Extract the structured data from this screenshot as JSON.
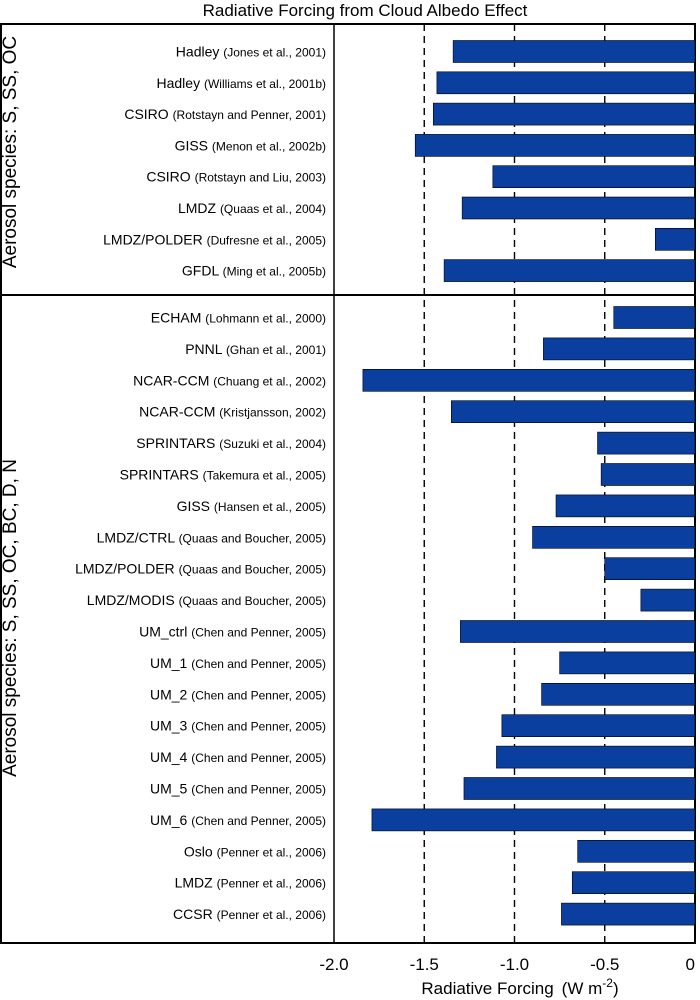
{
  "chart_data": {
    "type": "bar",
    "orientation": "horizontal",
    "title": "Radiative Forcing from Cloud Albedo Effect",
    "xlabel": "Radiative Forcing",
    "xlabel_units": "(W m",
    "xlabel_units_exp": "-2",
    "xlabel_units_close": ")",
    "xlim": [
      -2.0,
      0
    ],
    "xticks": [
      {
        "value": -2.0,
        "label": "-2.0"
      },
      {
        "value": -1.5,
        "label": "-1.5"
      },
      {
        "value": -1.0,
        "label": "-1.0"
      },
      {
        "value": -0.5,
        "label": "-0.5"
      },
      {
        "value": 0,
        "label": "0"
      }
    ],
    "reference_lines": [
      -1.5,
      -1.0,
      -0.5
    ],
    "bar_color": "#0a3fa0",
    "groups": [
      {
        "label": "Aerosol species: S, SS, OC",
        "items": [
          {
            "model": "Hadley",
            "ref": "(Jones et al., 2001)",
            "value": -1.34
          },
          {
            "model": "Hadley",
            "ref": "(Williams et al., 2001b)",
            "value": -1.43
          },
          {
            "model": "CSIRO",
            "ref": "(Rotstayn and Penner, 2001)",
            "value": -1.45
          },
          {
            "model": "GISS",
            "ref": "(Menon et al., 2002b)",
            "value": -1.55
          },
          {
            "model": "CSIRO",
            "ref": "(Rotstayn and Liu, 2003)",
            "value": -1.12
          },
          {
            "model": "LMDZ",
            "ref": "(Quaas et al., 2004)",
            "value": -1.29
          },
          {
            "model": "LMDZ/POLDER",
            "ref": "(Dufresne et al., 2005)",
            "value": -0.22
          },
          {
            "model": "GFDL",
            "ref": "(Ming et al., 2005b)",
            "value": -1.39
          }
        ]
      },
      {
        "label": "Aerosol species: S, SS, OC, BC, D, N",
        "items": [
          {
            "model": "ECHAM",
            "ref": "(Lohmann et al., 2000)",
            "value": -0.45
          },
          {
            "model": "PNNL",
            "ref": "(Ghan et al., 2001)",
            "value": -0.84
          },
          {
            "model": "NCAR-CCM",
            "ref": "(Chuang et al., 2002)",
            "value": -1.84
          },
          {
            "model": "NCAR-CCM",
            "ref": "(Kristjansson, 2002)",
            "value": -1.35
          },
          {
            "model": "SPRINTARS",
            "ref": "(Suzuki et al., 2004)",
            "value": -0.54
          },
          {
            "model": "SPRINTARS",
            "ref": "(Takemura et al., 2005)",
            "value": -0.52
          },
          {
            "model": "GISS",
            "ref": "(Hansen et al., 2005)",
            "value": -0.77
          },
          {
            "model": "LMDZ/CTRL",
            "ref": "(Quaas and Boucher, 2005)",
            "value": -0.9
          },
          {
            "model": "LMDZ/POLDER",
            "ref": "(Quaas and Boucher, 2005)",
            "value": -0.5
          },
          {
            "model": "LMDZ/MODIS",
            "ref": "(Quaas and Boucher, 2005)",
            "value": -0.3
          },
          {
            "model": "UM_ctrl",
            "ref": "(Chen and Penner, 2005)",
            "value": -1.3
          },
          {
            "model": "UM_1",
            "ref": "(Chen and Penner, 2005)",
            "value": -0.75
          },
          {
            "model": "UM_2",
            "ref": "(Chen and Penner, 2005)",
            "value": -0.85
          },
          {
            "model": "UM_3",
            "ref": "(Chen and Penner, 2005)",
            "value": -1.07
          },
          {
            "model": "UM_4",
            "ref": "(Chen and Penner, 2005)",
            "value": -1.1
          },
          {
            "model": "UM_5",
            "ref": "(Chen and Penner, 2005)",
            "value": -1.28
          },
          {
            "model": "UM_6",
            "ref": "(Chen and Penner, 2005)",
            "value": -1.79
          },
          {
            "model": "Oslo",
            "ref": "(Penner et al., 2006)",
            "value": -0.65
          },
          {
            "model": "LMDZ",
            "ref": "(Penner et al., 2006)",
            "value": -0.68
          },
          {
            "model": "CCSR",
            "ref": "(Penner et al., 2006)",
            "value": -0.74
          }
        ]
      }
    ]
  }
}
